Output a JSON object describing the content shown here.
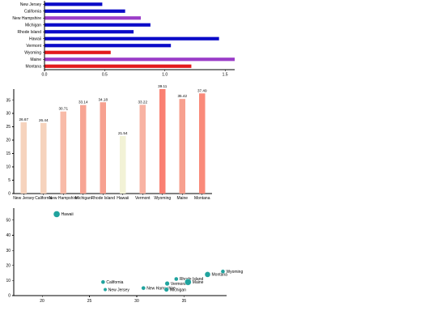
{
  "chart_data": [
    {
      "type": "bar",
      "orientation": "horizontal",
      "title": "",
      "categories": [
        "New Jersey",
        "California",
        "New Hampshire",
        "Michigan",
        "Rhode Island",
        "Hawaii",
        "Vermont",
        "Wyoming",
        "Maine",
        "Montana"
      ],
      "values": [
        0.48,
        0.67,
        0.8,
        0.88,
        0.74,
        1.45,
        1.05,
        0.55,
        1.58,
        1.22
      ],
      "colors": [
        "#0b0bc8",
        "#0b0bc8",
        "#9b3dc8",
        "#0b0bc8",
        "#0b0bc8",
        "#0b0bc8",
        "#0b0bc8",
        "#e31a1c",
        "#9b3dc8",
        "#e31a1c"
      ],
      "xlim": [
        0,
        1.58
      ],
      "xticks": [
        "0.0",
        "0.5",
        "1.0",
        "1.5"
      ],
      "xtick_values": [
        0,
        0.5,
        1.0,
        1.5
      ],
      "grid": false
    },
    {
      "type": "bar",
      "orientation": "vertical",
      "title": "",
      "categories": [
        "New Jersey",
        "California",
        "New Hampshire",
        "Michigan",
        "Rhode Island",
        "Hawaii",
        "Vermont",
        "Wyoming",
        "Maine",
        "Montana"
      ],
      "values": [
        26.67,
        26.44,
        30.71,
        33.14,
        34.18,
        21.54,
        33.22,
        39.11,
        35.42,
        37.49
      ],
      "value_labels": [
        "26.67",
        "26.44",
        "30.71",
        "33.14",
        "34.18",
        "21.54",
        "33.22",
        "39.11",
        "35.42",
        "37.49"
      ],
      "colors": [
        "#f6d3bd",
        "#f6d3bd",
        "#f8bba8",
        "#f7a594",
        "#f7a190",
        "#f2f2d6",
        "#f8b3a3",
        "#fa8072",
        "#f7a08f",
        "#fa8a7a"
      ],
      "ylim": [
        0,
        39.11
      ],
      "yticks": [
        "0",
        "5",
        "10",
        "15",
        "20",
        "25",
        "30",
        "35"
      ],
      "ytick_values": [
        0,
        5,
        10,
        15,
        20,
        25,
        30,
        35
      ],
      "grid": false
    },
    {
      "type": "scatter",
      "title": "",
      "color": "#20a39e",
      "points": [
        {
          "label": "Hawaii",
          "x": 21.54,
          "y": 54,
          "size": 4
        },
        {
          "label": "California",
          "x": 26.44,
          "y": 9,
          "size": 2.5
        },
        {
          "label": "New Jersey",
          "x": 26.67,
          "y": 4,
          "size": 2.2
        },
        {
          "label": "New Hampshire",
          "x": 30.71,
          "y": 5,
          "size": 2.5
        },
        {
          "label": "Vermont",
          "x": 33.22,
          "y": 8,
          "size": 2.8
        },
        {
          "label": "Michigan",
          "x": 33.14,
          "y": 4,
          "size": 2.8
        },
        {
          "label": "Rhode Island",
          "x": 34.18,
          "y": 11,
          "size": 2.5
        },
        {
          "label": "Maine",
          "x": 35.42,
          "y": 9,
          "size": 4
        },
        {
          "label": "Montana",
          "x": 37.49,
          "y": 14,
          "size": 3.5
        },
        {
          "label": "Wyoming",
          "x": 39.11,
          "y": 16,
          "size": 2.5
        }
      ],
      "xlim": [
        17,
        39.5
      ],
      "ylim": [
        0,
        58
      ],
      "xticks": [
        "20",
        "25",
        "30",
        "35"
      ],
      "xtick_values": [
        20,
        25,
        30,
        35
      ],
      "yticks": [
        "0",
        "10",
        "20",
        "30",
        "40",
        "50"
      ],
      "ytick_values": [
        0,
        10,
        20,
        30,
        40,
        50
      ],
      "grid": false
    }
  ]
}
